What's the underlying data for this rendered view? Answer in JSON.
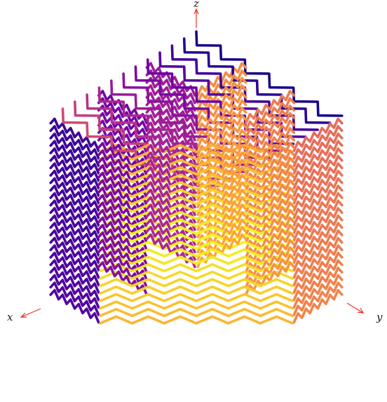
{
  "axes": {
    "x_label": "x",
    "y_label": "y",
    "z_label": "z",
    "axis_color": "#e8302a"
  },
  "curve": {
    "colormap": "plasma",
    "color_stops": [
      "#0d0887",
      "#6a00a8",
      "#b12a90",
      "#e16462",
      "#fca636",
      "#f0f921"
    ],
    "layers": 24,
    "zigzags_per_strand": 6,
    "strands_per_face": 3
  }
}
